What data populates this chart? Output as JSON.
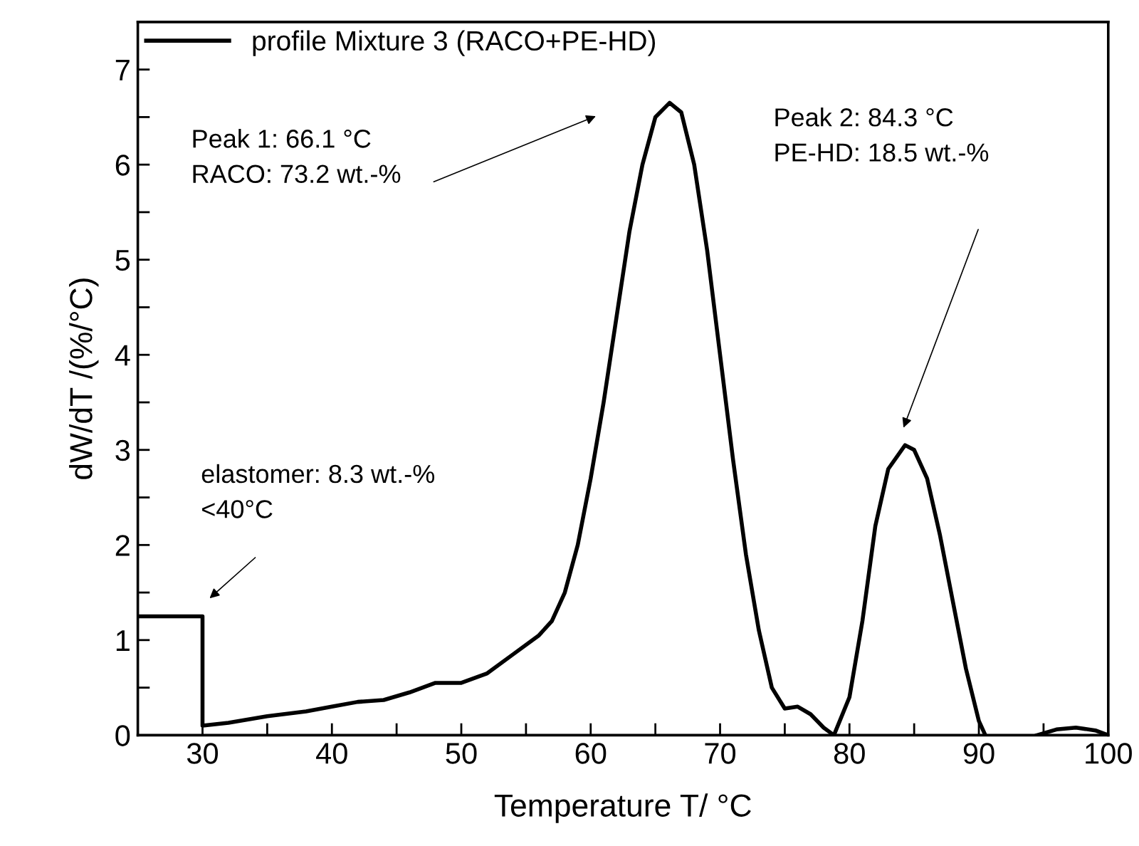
{
  "chart_data": {
    "type": "line",
    "xlabel": "Temperature T/ °C",
    "ylabel": "dW/dT /(%/°C)",
    "x": [
      25,
      30,
      30,
      32,
      35,
      38,
      40,
      42,
      44,
      46,
      48,
      50,
      52,
      54,
      56,
      57,
      58,
      59,
      60,
      61,
      62,
      63,
      64,
      65,
      66.1,
      67,
      68,
      69,
      70,
      71,
      72,
      73,
      74,
      75,
      76,
      77,
      78,
      78.8,
      80,
      81,
      82,
      83,
      84.3,
      85,
      86,
      87,
      88,
      89,
      90,
      90.5,
      92,
      94.5,
      96,
      97.5,
      99,
      100
    ],
    "series": [
      {
        "name": "profile Mixture 3 (RACO+PE-HD)",
        "color": "#000000",
        "values": [
          1.25,
          1.25,
          0.1,
          0.13,
          0.2,
          0.25,
          0.3,
          0.35,
          0.37,
          0.45,
          0.55,
          0.55,
          0.65,
          0.85,
          1.05,
          1.2,
          1.5,
          2.0,
          2.7,
          3.5,
          4.4,
          5.3,
          6.0,
          6.5,
          6.65,
          6.55,
          6.0,
          5.1,
          4.0,
          2.9,
          1.9,
          1.1,
          0.5,
          0.28,
          0.3,
          0.22,
          0.08,
          0.0,
          0.4,
          1.2,
          2.2,
          2.8,
          3.05,
          3.0,
          2.7,
          2.1,
          1.4,
          0.7,
          0.15,
          0.0,
          null,
          0.0,
          0.06,
          0.08,
          0.05,
          0.0
        ]
      }
    ],
    "xlim": [
      25,
      100
    ],
    "ylim": [
      0,
      7.5
    ],
    "xticks": [
      30,
      {
        "value": 35,
        "label": null
      },
      40,
      {
        "value": 45,
        "label": null
      },
      50,
      {
        "value": 55,
        "label": null
      },
      60,
      {
        "value": 65,
        "label": null
      },
      70,
      {
        "value": 75,
        "label": null
      },
      80,
      {
        "value": 85,
        "label": null
      },
      90,
      {
        "value": 95,
        "label": null
      },
      100
    ],
    "yticks": [
      0,
      {
        "value": 0.5,
        "label": null
      },
      1,
      {
        "value": 1.5,
        "label": null
      },
      2,
      {
        "value": 2.5,
        "label": null
      },
      3,
      {
        "value": 3.5,
        "label": null
      },
      4,
      {
        "value": 4.5,
        "label": null
      },
      5,
      {
        "value": 5.5,
        "label": null
      },
      6,
      {
        "value": 6.5,
        "label": null
      },
      7
    ],
    "annotations": [
      "Peak 1: 66.1 °C\nRACO: 73.2 wt.-%",
      "Peak 2: 84.3 °C\nPE-HD: 18.5 wt.-%",
      "elastomer: 8.3 wt.-%\n<40°C"
    ],
    "legend": "top left",
    "grid": false,
    "marker": "none",
    "line_style": "solid"
  }
}
